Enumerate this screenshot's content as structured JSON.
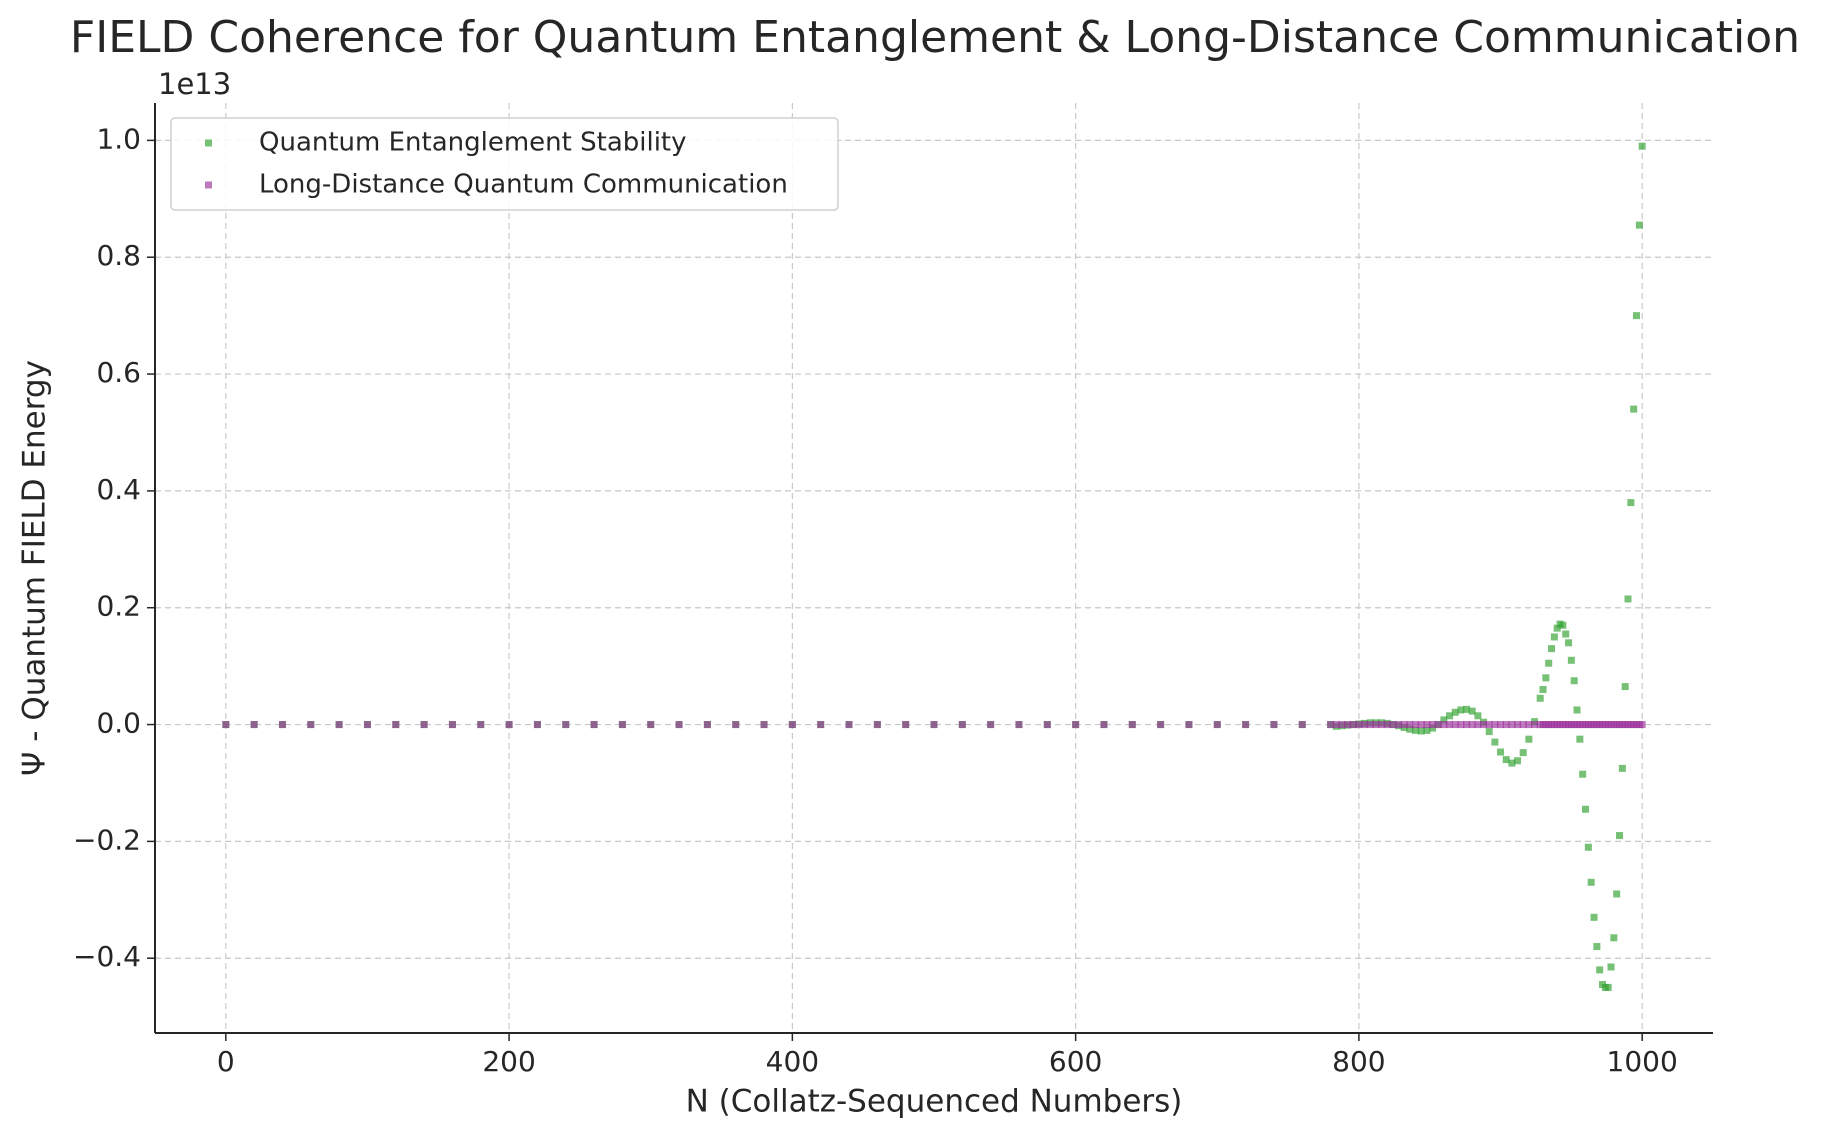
{
  "chart_data": {
    "type": "scatter",
    "title": "FIELD Coherence for Quantum Entanglement & Long-Distance Communication",
    "x_label": "N (Collatz-Sequenced Numbers)",
    "y_label": "Ψ - Quantum FIELD Energy",
    "y_offset_label": "1e13",
    "xlim": [
      -50,
      1050
    ],
    "ylim": [
      -5280000000000.0,
      10640000000000.0
    ],
    "xticks": [
      0,
      200,
      400,
      600,
      800,
      1000
    ],
    "yticks": [
      {
        "value": -4000000000000.0,
        "label": "−0.4"
      },
      {
        "value": -2000000000000.0,
        "label": "−0.2"
      },
      {
        "value": 0,
        "label": "0.0"
      },
      {
        "value": 2000000000000.0,
        "label": "0.2"
      },
      {
        "value": 4000000000000.0,
        "label": "0.4"
      },
      {
        "value": 6000000000000.0,
        "label": "0.6"
      },
      {
        "value": 8000000000000.0,
        "label": "0.8"
      },
      {
        "value": 10000000000000.0,
        "label": "1.0"
      }
    ],
    "grid": true,
    "legend": "upper left",
    "x": [
      0,
      20,
      40,
      60,
      80,
      100,
      120,
      140,
      160,
      180,
      200,
      220,
      240,
      260,
      280,
      300,
      320,
      340,
      360,
      380,
      400,
      420,
      440,
      460,
      480,
      500,
      520,
      540,
      560,
      580,
      600,
      620,
      640,
      660,
      680,
      700,
      720,
      740,
      760,
      780,
      784,
      788,
      792,
      796,
      800,
      804,
      808,
      812,
      816,
      820,
      824,
      828,
      832,
      836,
      840,
      844,
      848,
      852,
      856,
      860,
      864,
      868,
      872,
      876,
      880,
      884,
      888,
      892,
      896,
      900,
      904,
      908,
      912,
      916,
      920,
      924,
      928,
      930,
      932,
      934,
      936,
      938,
      940,
      942,
      944,
      946,
      948,
      950,
      952,
      954,
      956,
      958,
      960,
      962,
      964,
      966,
      968,
      970,
      972,
      974,
      976,
      978,
      980,
      982,
      984,
      986,
      988,
      990,
      992,
      994,
      996,
      998,
      1000
    ],
    "series": [
      {
        "name": "Quantum Entanglement Stability",
        "color": "#2ca02c",
        "values": [
          0,
          0,
          0,
          0,
          0,
          0,
          0,
          0,
          0,
          0,
          0,
          0,
          0,
          0,
          0,
          0,
          0,
          0,
          0,
          0,
          0,
          0,
          0,
          0,
          0,
          0,
          0,
          0,
          0,
          0,
          0,
          0,
          0,
          0,
          0,
          0,
          0,
          0,
          0,
          0,
          -30000000000.0,
          -20000000000.0,
          -10000000000.0,
          0,
          10000000000.0,
          20000000000.0,
          30000000000.0,
          30000000000.0,
          30000000000.0,
          20000000000.0,
          0,
          -20000000000.0,
          -50000000000.0,
          -80000000000.0,
          -100000000000.0,
          -110000000000.0,
          -100000000000.0,
          -60000000000.0,
          0,
          80000000000.0,
          150000000000.0,
          210000000000.0,
          250000000000.0,
          260000000000.0,
          230000000000.0,
          150000000000.0,
          40000000000.0,
          -120000000000.0,
          -300000000000.0,
          -470000000000.0,
          -600000000000.0,
          -660000000000.0,
          -620000000000.0,
          -480000000000.0,
          -250000000000.0,
          50000000000.0,
          450000000000.0,
          600000000000.0,
          800000000000.0,
          1050000000000.0,
          1300000000000.0,
          1500000000000.0,
          1650000000000.0,
          1720000000000.0,
          1700000000000.0,
          1550000000000.0,
          1400000000000.0,
          1100000000000.0,
          750000000000.0,
          250000000000.0,
          -250000000000.0,
          -850000000000.0,
          -1450000000000.0,
          -2100000000000.0,
          -2700000000000.0,
          -3300000000000.0,
          -3800000000000.0,
          -4200000000000.0,
          -4450000000000.0,
          -4500000000000.0,
          -4500000000000.0,
          -4150000000000.0,
          -3650000000000.0,
          -2900000000000.0,
          -1900000000000.0,
          -750000000000.0,
          650000000000.0,
          2150000000000.0,
          3800000000000.0,
          5400000000000.0,
          7000000000000.0,
          8550000000000.0,
          9900000000000.0
        ]
      },
      {
        "name": "Long-Distance Quantum Communication",
        "color": "#9b309b",
        "values": [
          0,
          0,
          0,
          0,
          0,
          0,
          0,
          0,
          0,
          0,
          0,
          0,
          0,
          0,
          0,
          0,
          0,
          0,
          0,
          0,
          0,
          0,
          0,
          0,
          0,
          0,
          0,
          0,
          0,
          0,
          0,
          0,
          0,
          0,
          0,
          0,
          0,
          0,
          0,
          0,
          0,
          0,
          0,
          0,
          0,
          0,
          0,
          0,
          0,
          0,
          0,
          0,
          0,
          0,
          0,
          0,
          0,
          0,
          0,
          0,
          0,
          0,
          0,
          0,
          0,
          0,
          0,
          0,
          0,
          0,
          0,
          0,
          0,
          0,
          0,
          0,
          0,
          0,
          0,
          0,
          0,
          0,
          0,
          0,
          0,
          0,
          0,
          0,
          0,
          0,
          0,
          0,
          0,
          0,
          0,
          0,
          0,
          0,
          0,
          0,
          0,
          0,
          0,
          0,
          0,
          0,
          0,
          0,
          0,
          0,
          0,
          0,
          0
        ]
      }
    ]
  }
}
